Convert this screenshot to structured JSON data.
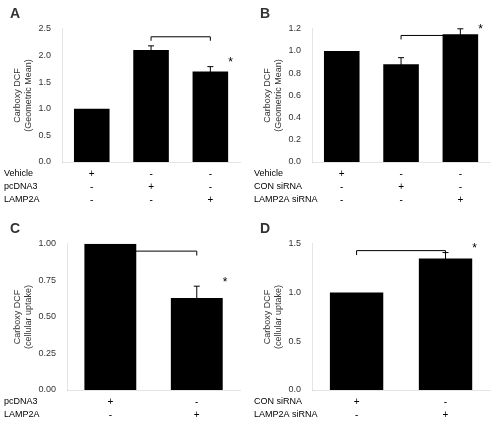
{
  "chart_data": [
    {
      "type": "bar",
      "title": "A",
      "categories": [
        null,
        null,
        null
      ],
      "values": [
        1.0,
        2.1,
        1.7
      ],
      "errors": [
        0.0,
        0.08,
        0.09
      ],
      "color": "#000000",
      "ylabel": "Carboxy DCF\n(Geometric Mean)",
      "ylim": [
        0,
        2.5
      ],
      "yticks": [
        {
          "value": 0,
          "label": "0.0"
        },
        0.5,
        {
          "value": 1.0,
          "label": "1.0"
        },
        1.5,
        {
          "value": 2.0,
          "label": "2.0"
        },
        2.5
      ],
      "grid": false,
      "tick_labels": "y",
      "rows": [
        {
          "label": "Vehicle",
          "signs": [
            "+",
            "-",
            "-"
          ]
        },
        {
          "label": "pcDNA3",
          "signs": [
            "-",
            "+",
            "-"
          ]
        },
        {
          "label": "LAMP2A",
          "signs": [
            "-",
            "-",
            "+"
          ]
        }
      ],
      "bracket": {
        "from": 1,
        "to": 2,
        "y": 2.35
      },
      "annotations": [
        {
          "text": "*",
          "bar": 2,
          "y": 1.82
        }
      ]
    },
    {
      "type": "bar",
      "title": "B",
      "categories": [
        null,
        null,
        null
      ],
      "values": [
        1.0,
        0.88,
        1.15
      ],
      "errors": [
        0.0,
        0.06,
        0.05
      ],
      "color": "#000000",
      "ylabel": "Carboxy DCF\n(Geometric Mean)",
      "ylim": [
        0,
        1.2
      ],
      "yticks": [
        {
          "value": 0,
          "label": "0.0"
        },
        0.2,
        0.4,
        0.6,
        0.8,
        {
          "value": 1.0,
          "label": "1.0"
        },
        1.2
      ],
      "grid": false,
      "tick_labels": "y",
      "rows": [
        {
          "label": "Vehicle",
          "signs": [
            "+",
            "-",
            "-"
          ]
        },
        {
          "label": "CON siRNA",
          "signs": [
            "-",
            "+",
            "-"
          ]
        },
        {
          "label": "LAMP2A siRNA",
          "signs": [
            "-",
            "-",
            "+"
          ]
        }
      ],
      "bracket": {
        "from": 1,
        "to": 2,
        "y": 1.14
      },
      "annotations": [
        {
          "text": "*",
          "bar": 2,
          "y": 1.17
        }
      ]
    },
    {
      "type": "bar",
      "title": "C",
      "categories": [
        null,
        null
      ],
      "values": [
        1.0,
        0.63
      ],
      "errors": [
        0.0,
        0.08
      ],
      "color": "#000000",
      "ylabel": "Carboxy DCF\n(cellular uptake)",
      "ylim": [
        0,
        1.0
      ],
      "yticks": [
        {
          "value": 0,
          "label": "0.00"
        },
        0.25,
        {
          "value": 0.5,
          "label": "0.50"
        },
        0.75,
        {
          "value": 1.0,
          "label": "1.00"
        }
      ],
      "grid": false,
      "tick_labels": "y",
      "rows": [
        {
          "label": "pcDNA3",
          "signs": [
            "+",
            "-"
          ]
        },
        {
          "label": "LAMP2A",
          "signs": [
            "-",
            "+"
          ]
        }
      ],
      "bracket": {
        "from": 0,
        "to": 1,
        "y": 0.95
      },
      "annotations": [
        {
          "text": "*",
          "bar": 1,
          "y": 0.72
        }
      ]
    },
    {
      "type": "bar",
      "title": "D",
      "categories": [
        null,
        null
      ],
      "values": [
        1.0,
        1.35
      ],
      "errors": [
        0.0,
        0.06
      ],
      "color": "#000000",
      "ylabel": "Carboxy DCF\n(cellular uptake)",
      "ylim": [
        0,
        1.5
      ],
      "yticks": [
        {
          "value": 0,
          "label": "0.0"
        },
        0.5,
        {
          "value": 1.0,
          "label": "1.0"
        },
        1.5
      ],
      "grid": false,
      "tick_labels": "y",
      "rows": [
        {
          "label": "CON siRNA",
          "signs": [
            "+",
            "-"
          ]
        },
        {
          "label": "LAMP2A siRNA",
          "signs": [
            "-",
            "+"
          ]
        }
      ],
      "bracket": {
        "from": 0,
        "to": 1,
        "y": 1.43
      },
      "annotations": [
        {
          "text": "*",
          "bar": 1,
          "y": 1.43
        }
      ]
    }
  ]
}
